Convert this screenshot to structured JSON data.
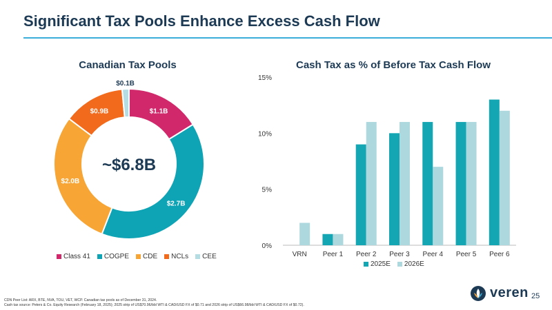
{
  "slide": {
    "title": "Significant Tax Pools Enhance Excess Cash Flow",
    "page_number": "25",
    "logo_text": "veren",
    "footnotes": [
      "CDN Peer List: ARX, BTE, NVA, TOU, VET, WCP. Canadian tax pools as of December 31, 2024.",
      "Cash tax source: Peters & Co. Equity Research (February 18, 2025); 2025 strip of US$70.96/bbl WTI & CAD/USD FX of $0.71 and 2026 strip of US$66.98/bbl WTI & CAD/USD FX of $0.72)."
    ]
  },
  "colors": {
    "navy": "#1d3a55",
    "accent": "#3aaed8"
  },
  "chart_data": [
    {
      "type": "pie",
      "title": "Canadian Tax Pools",
      "center_label": "~$6.8B",
      "legend_position": "bottom",
      "slices": [
        {
          "name": "Class 41",
          "value": 1.1,
          "label": "$1.1B",
          "color": "#d0286a"
        },
        {
          "name": "COGPE",
          "value": 2.7,
          "label": "$2.7B",
          "color": "#0ea3b5"
        },
        {
          "name": "CDE",
          "value": 2.0,
          "label": "$2.0B",
          "color": "#f7a535"
        },
        {
          "name": "NCLs",
          "value": 0.9,
          "label": "$0.9B",
          "color": "#f26a1b"
        },
        {
          "name": "CEE",
          "value": 0.1,
          "label": "$0.1B",
          "color": "#b3dde3"
        }
      ]
    },
    {
      "type": "bar",
      "title": "Cash Tax as % of Before Tax Cash Flow",
      "categories": [
        "VRN",
        "Peer 1",
        "Peer 2",
        "Peer 3",
        "Peer 4",
        "Peer 5",
        "Peer 6"
      ],
      "series": [
        {
          "name": "2025E",
          "values": [
            0,
            1,
            9,
            10,
            11,
            11,
            13
          ],
          "color": "#14a7b3"
        },
        {
          "name": "2026E",
          "values": [
            2,
            1,
            11,
            11,
            7,
            11,
            12
          ],
          "color": "#acd8de"
        }
      ],
      "ylim": [
        0,
        15
      ],
      "yticks": [
        0,
        5,
        10,
        15
      ],
      "ytick_labels": [
        "0%",
        "5%",
        "10%",
        "15%"
      ],
      "legend_position": "bottom",
      "grid": false
    }
  ]
}
